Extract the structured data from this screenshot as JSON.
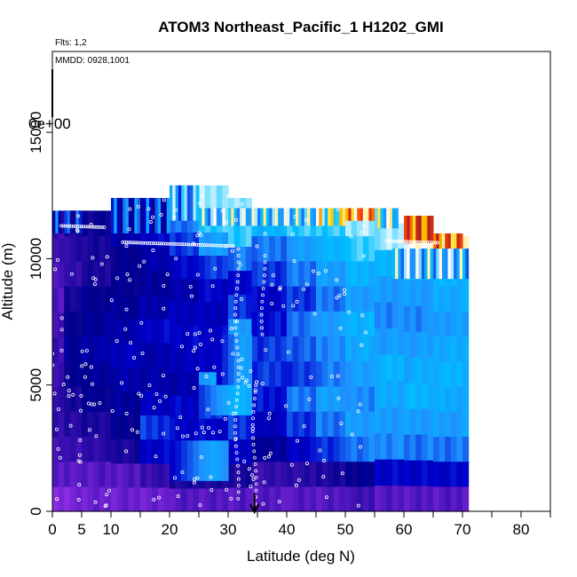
{
  "chart_data": {
    "type": "heatmap",
    "title": "ATOM3 Northeast_Pacific_1 H1202_GMI",
    "flights_label": "Flts: 1,2",
    "dates_label": "MMDD: 0928,1001",
    "xlabel": "Latitude (deg N)",
    "ylabel": "Altitude (m)",
    "xlim": [
      0,
      85
    ],
    "ylim": [
      0,
      18200
    ],
    "x_ticks": [
      0,
      5,
      10,
      20,
      30,
      40,
      50,
      60,
      70,
      80
    ],
    "x_minor_ticks": [
      15,
      25,
      35,
      45,
      55,
      65,
      75,
      85
    ],
    "y_ticks": [
      0,
      5000,
      10000,
      15000
    ],
    "y_overprint_label": "0e+00",
    "arrow_marker": {
      "latitude": 34.5
    },
    "colorscale": [
      "#8a2be2",
      "#3a0fb0",
      "#00008b",
      "#0000cd",
      "#1e90ff",
      "#00bfff",
      "#ffffff",
      "#ffd700",
      "#ff4500",
      "#b22222"
    ],
    "field_columns": [
      {
        "lat": [
          0,
          2
        ],
        "alt": [
          0,
          11800
        ],
        "profile": [
          0.0,
          0.05,
          0.08,
          0.1,
          0.1,
          0.1,
          0.1,
          0.08,
          0.05,
          0.05,
          0.1,
          0.1
        ]
      },
      {
        "lat": [
          2,
          5
        ],
        "alt": [
          0,
          11900
        ],
        "profile": [
          0.0,
          0.05,
          0.1,
          0.12,
          0.15,
          0.2,
          0.22,
          0.2,
          0.15,
          0.1,
          0.12,
          0.15
        ]
      },
      {
        "lat": [
          5,
          10
        ],
        "alt": [
          0,
          11900
        ],
        "profile": [
          0.02,
          0.05,
          0.12,
          0.15,
          0.2,
          0.22,
          0.25,
          0.22,
          0.2,
          0.15,
          0.15,
          0.18
        ]
      },
      {
        "lat": [
          10,
          15
        ],
        "alt": [
          0,
          12400
        ],
        "profile": [
          0.02,
          0.05,
          0.15,
          0.2,
          0.22,
          0.25,
          0.28,
          0.25,
          0.22,
          0.2,
          0.2,
          0.25,
          0.3
        ]
      },
      {
        "lat": [
          15,
          20
        ],
        "alt": [
          0,
          12400
        ],
        "profile": [
          0.02,
          0.1,
          0.3,
          0.35,
          0.28,
          0.25,
          0.25,
          0.3,
          0.25,
          0.22,
          0.25,
          0.3,
          0.35
        ]
      },
      {
        "lat": [
          20,
          25
        ],
        "alt": [
          0,
          12900
        ],
        "profile": [
          0.05,
          0.15,
          0.4,
          0.3,
          0.3,
          0.25,
          0.28,
          0.3,
          0.28,
          0.25,
          0.3,
          0.35,
          0.4,
          0.45
        ]
      },
      {
        "lat": [
          25,
          30
        ],
        "alt": [
          0,
          12900
        ],
        "profile": [
          0.05,
          0.15,
          0.35,
          0.3,
          0.35,
          0.45,
          0.3,
          0.3,
          0.28,
          0.3,
          0.35,
          0.45,
          0.55,
          0.6
        ]
      },
      {
        "lat": [
          30,
          34
        ],
        "alt": [
          0,
          12400
        ],
        "profile": [
          0.05,
          0.15,
          0.3,
          0.35,
          0.4,
          0.55,
          0.4,
          0.45,
          0.35,
          0.3,
          0.4,
          0.55,
          0.6
        ]
      },
      {
        "lat": [
          34,
          40
        ],
        "alt": [
          0,
          11900
        ],
        "profile": [
          0.05,
          0.1,
          0.22,
          0.28,
          0.32,
          0.35,
          0.35,
          0.32,
          0.3,
          0.35,
          0.4,
          0.5
        ]
      },
      {
        "lat": [
          40,
          45
        ],
        "alt": [
          0,
          11900
        ],
        "profile": [
          0.05,
          0.12,
          0.3,
          0.35,
          0.4,
          0.35,
          0.38,
          0.4,
          0.35,
          0.4,
          0.45,
          0.55
        ]
      },
      {
        "lat": [
          45,
          50
        ],
        "alt": [
          0,
          11900
        ],
        "profile": [
          0.05,
          0.15,
          0.35,
          0.4,
          0.45,
          0.4,
          0.42,
          0.45,
          0.4,
          0.45,
          0.5,
          0.55
        ]
      },
      {
        "lat": [
          50,
          55
        ],
        "alt": [
          0,
          11900
        ],
        "profile": [
          0.08,
          0.2,
          0.4,
          0.45,
          0.42,
          0.45,
          0.48,
          0.5,
          0.45,
          0.5,
          0.55,
          0.6
        ]
      },
      {
        "lat": [
          55,
          60
        ],
        "alt": [
          0,
          11400
        ],
        "profile": [
          0.05,
          0.3,
          0.42,
          0.45,
          0.48,
          0.5,
          0.45,
          0.42,
          0.45,
          0.5,
          0.6
        ]
      },
      {
        "lat": [
          60,
          65
        ],
        "alt": [
          0,
          11200
        ],
        "profile": [
          0.05,
          0.3,
          0.4,
          0.45,
          0.5,
          0.48,
          0.45,
          0.42,
          0.45,
          0.5,
          0.65
        ]
      },
      {
        "lat": [
          65,
          71
        ],
        "alt": [
          0,
          10900
        ],
        "profile": [
          0.05,
          0.3,
          0.4,
          0.45,
          0.48,
          0.5,
          0.48,
          0.45,
          0.48,
          0.5,
          0.7
        ]
      }
    ],
    "upper_band": [
      {
        "lat": [
          0,
          5
        ],
        "alt": [
          11000,
          11900
        ],
        "value": 0.35
      },
      {
        "lat": [
          10,
          20
        ],
        "alt": [
          11000,
          12400
        ],
        "value": 0.4
      },
      {
        "lat": [
          20,
          25
        ],
        "alt": [
          11500,
          12900
        ],
        "value": 0.55
      },
      {
        "lat": [
          25,
          30
        ],
        "alt": [
          11300,
          12000
        ],
        "value": 0.6
      },
      {
        "lat": [
          30,
          45
        ],
        "alt": [
          11300,
          12000
        ],
        "value": 0.62
      },
      {
        "lat": [
          45,
          50
        ],
        "alt": [
          11300,
          12000
        ],
        "value": 0.72
      },
      {
        "lat": [
          50,
          55
        ],
        "alt": [
          11500,
          12000
        ],
        "value": 0.85
      },
      {
        "lat": [
          55,
          59
        ],
        "alt": [
          11200,
          12000
        ],
        "value": 0.65
      },
      {
        "lat": [
          60,
          65
        ],
        "alt": [
          10600,
          11700
        ],
        "value": 0.95
      },
      {
        "lat": [
          65,
          70
        ],
        "alt": [
          10000,
          11000
        ],
        "value": 0.9
      },
      {
        "lat": [
          58,
          71
        ],
        "alt": [
          9200,
          10400
        ],
        "value": 0.6
      }
    ],
    "lower_highlights": [
      {
        "lat": [
          25,
          34
        ],
        "alt": [
          3800,
          5000
        ],
        "value": 0.55
      },
      {
        "lat": [
          20,
          30
        ],
        "alt": [
          1200,
          2800
        ],
        "value": 0.5
      },
      {
        "lat": [
          28,
          34
        ],
        "alt": [
          5000,
          7000
        ],
        "value": 0.5
      }
    ],
    "flight_track_points": {
      "seed": 7,
      "count": 260,
      "lat_range": [
        0,
        55
      ],
      "alt_range": [
        200,
        12600
      ]
    }
  }
}
